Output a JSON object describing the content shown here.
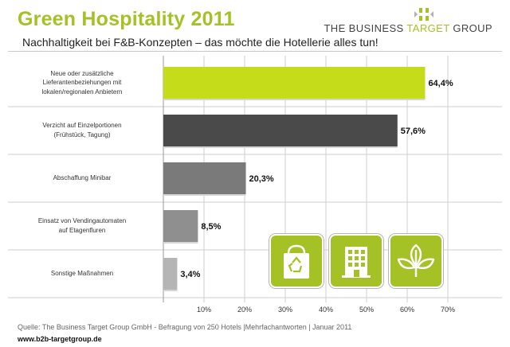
{
  "title": "Green Hospitality 2011",
  "logo": {
    "prefix": "THE BUSINESS ",
    "accent": "TARGET",
    "suffix": " GROUP"
  },
  "chart_data": {
    "type": "bar",
    "orientation": "horizontal",
    "title": "Nachhaltigkeit bei F&B-Konzepten – das möchte die Hotellerie alles tun!",
    "categories": [
      "Neue oder zusätzliche Lieferantenbeziehungen mit lokalen/regionalen Anbietern",
      "Verzicht auf Einzelportionen (Frühstück, Tagung)",
      "Abschaffung Minibar",
      "Einsatz von Vendingautomaten auf Etagenfluren",
      "Sonstige Maßnahmen"
    ],
    "category_lines": [
      [
        "Neue oder zusätzliche",
        "Lieferantenbeziehungen mit",
        "lokalen/regionalen Anbietern"
      ],
      [
        "Verzicht auf Einzelportionen",
        "(Frühstück, Tagung)"
      ],
      [
        "Abschaffung Minibar"
      ],
      [
        "Einsatz von Vendingautomaten",
        "auf Etagenfluren"
      ],
      [
        "Sonstige Maßnahmen"
      ]
    ],
    "values": [
      64.4,
      57.6,
      20.3,
      8.5,
      3.4
    ],
    "value_labels": [
      "64,4%",
      "57,6%",
      "20,3%",
      "8,5%",
      "3,4%"
    ],
    "bar_colors": [
      "#c5dc1a",
      "#4a4a4a",
      "#7a7a7a",
      "#8f8f8f",
      "#b5b5b5"
    ],
    "xlim": [
      0,
      70
    ],
    "xticks": [
      10,
      20,
      30,
      40,
      50,
      60,
      70
    ],
    "xtick_labels": [
      "10%",
      "20%",
      "30%",
      "40%",
      "50%",
      "60%",
      "70%"
    ],
    "grid": true
  },
  "icons": [
    "recycling-bag-icon",
    "hotel-building-icon",
    "leaves-icon"
  ],
  "source": "Quelle: The Business Target Group GmbH - Befragung von 250 Hotels |Mehrfachantworten | Januar 2011",
  "url": "www.b2b-targetgroup.de",
  "colors": {
    "accent": "#a4c225",
    "grid": "#cfcfcf"
  }
}
